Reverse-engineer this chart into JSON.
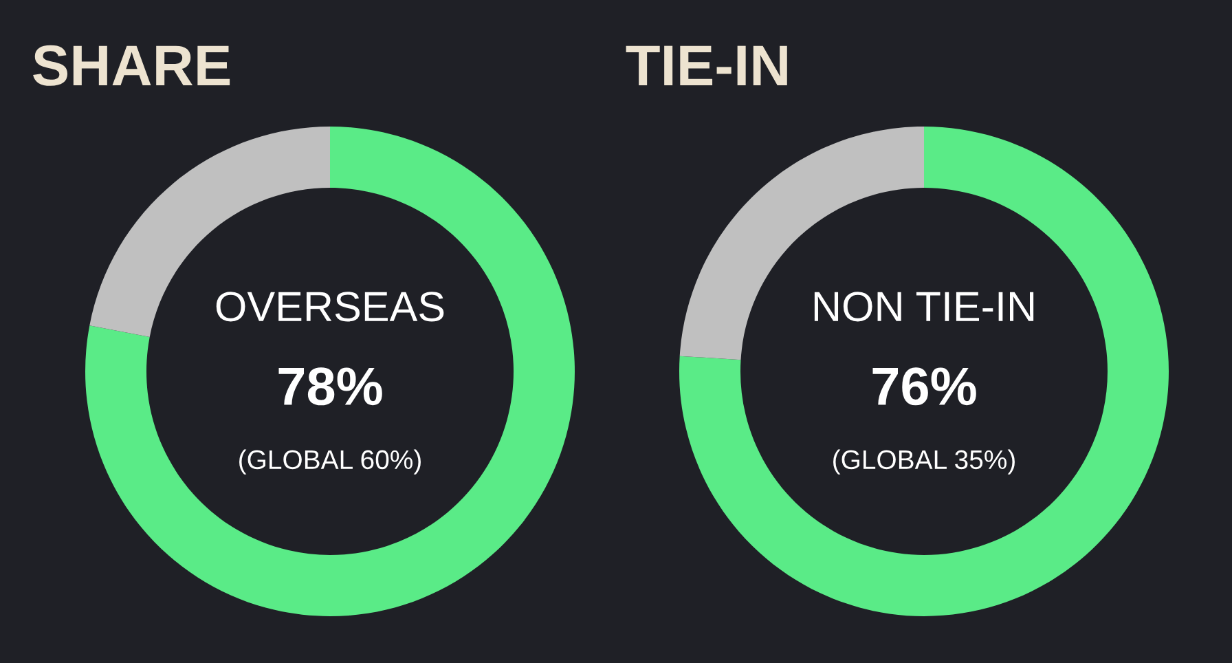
{
  "chart_data": [
    {
      "type": "donut",
      "title": "SHARE",
      "categories": [
        "OVERSEAS",
        null
      ],
      "values": [
        78,
        22
      ],
      "colors": [
        "#5aeb87",
        "#c0c0c0"
      ],
      "value_labels": [
        "78%",
        null
      ],
      "annotations": [
        "(GLOBAL 60%)"
      ]
    },
    {
      "type": "donut",
      "title": "TIE-IN",
      "categories": [
        "NON TIE-IN",
        null
      ],
      "values": [
        76,
        24
      ],
      "colors": [
        "#5aeb87",
        "#c0c0c0"
      ],
      "value_labels": [
        "76%",
        null
      ],
      "annotations": [
        "(GLOBAL 35%)"
      ]
    }
  ]
}
